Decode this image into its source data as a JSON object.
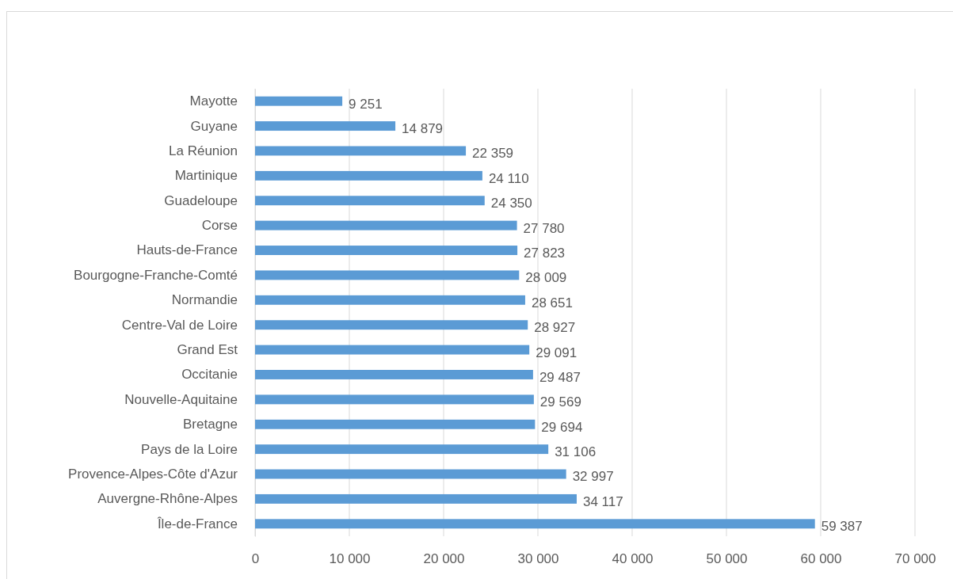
{
  "chart_data": {
    "type": "bar",
    "orientation": "horizontal",
    "categories": [
      "Mayotte",
      "Guyane",
      "La Réunion",
      "Martinique",
      "Guadeloupe",
      "Corse",
      "Hauts-de-France",
      "Bourgogne-Franche-Comté",
      "Normandie",
      "Centre-Val de Loire",
      "Grand Est",
      "Occitanie",
      "Nouvelle-Aquitaine",
      "Bretagne",
      "Pays de la Loire",
      "Provence-Alpes-Côte d'Azur",
      "Auvergne-Rhône-Alpes",
      "Île-de-France"
    ],
    "values": [
      9251,
      14879,
      22359,
      24110,
      24350,
      27780,
      27823,
      28009,
      28651,
      28927,
      29091,
      29487,
      29569,
      29694,
      31106,
      32997,
      34117,
      59387
    ],
    "value_labels": [
      "9 251",
      "14 879",
      "22 359",
      "24 110",
      "24 350",
      "27 780",
      "27 823",
      "28 009",
      "28 651",
      "28 927",
      "29 091",
      "29 487",
      "29 569",
      "29 694",
      "31 106",
      "32 997",
      "34 117",
      "59 387"
    ],
    "color": "#5b9bd5",
    "xlim": [
      0,
      70000
    ],
    "xticks": [
      0,
      {
        "value": 10000,
        "label": "10 000"
      },
      {
        "value": 20000,
        "label": "20 000"
      },
      {
        "value": 30000,
        "label": "30 000"
      },
      {
        "value": 40000,
        "label": "40 000"
      },
      {
        "value": 50000,
        "label": "50 000"
      },
      {
        "value": 60000,
        "label": "60 000"
      },
      {
        "value": 70000,
        "label": "70 000"
      }
    ],
    "grid": "x"
  }
}
